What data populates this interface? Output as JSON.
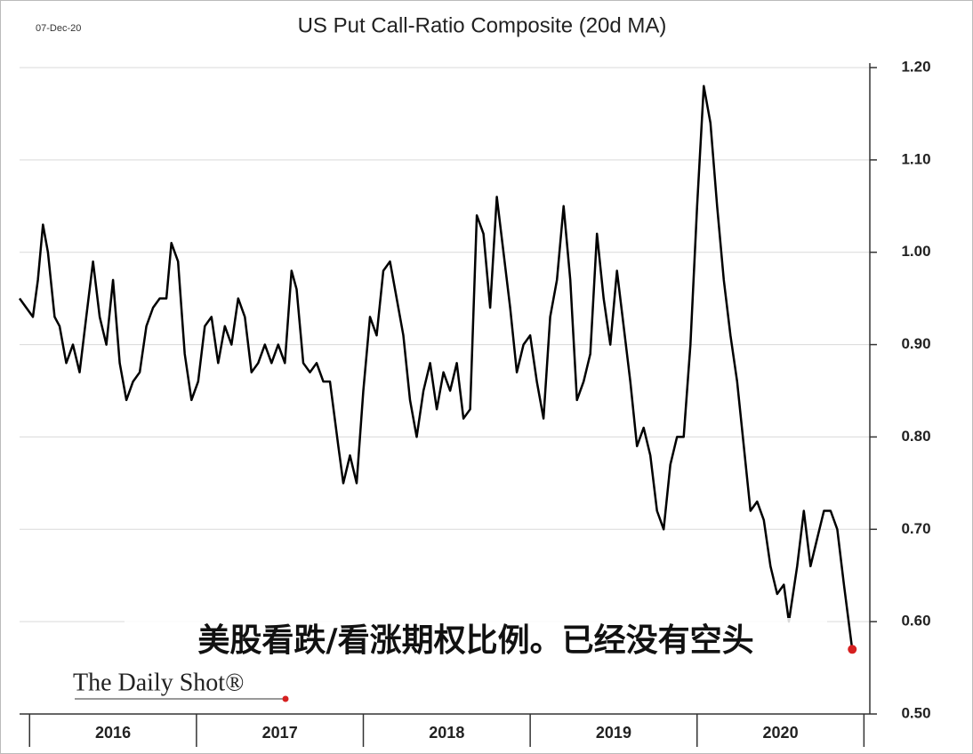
{
  "chart_data": {
    "type": "line",
    "title": "US Put Call-Ratio Composite (20d MA)",
    "date_note": "07-Dec-20",
    "annotation": "美股看跌/看涨期权比例。已经没有空头",
    "source": "The Daily Shot®",
    "series": [
      {
        "name": "US Put Call-Ratio Composite (20d MA)",
        "color": "#000000",
        "x": [
          2015.94,
          2015.98,
          2016.02,
          2016.05,
          2016.08,
          2016.11,
          2016.15,
          2016.18,
          2016.22,
          2016.26,
          2016.3,
          2016.34,
          2016.38,
          2016.42,
          2016.46,
          2016.5,
          2016.54,
          2016.58,
          2016.62,
          2016.66,
          2016.7,
          2016.74,
          2016.78,
          2016.82,
          2016.85,
          2016.89,
          2016.93,
          2016.97,
          2017.01,
          2017.05,
          2017.09,
          2017.13,
          2017.17,
          2017.21,
          2017.25,
          2017.29,
          2017.33,
          2017.37,
          2017.41,
          2017.45,
          2017.49,
          2017.53,
          2017.57,
          2017.6,
          2017.64,
          2017.68,
          2017.72,
          2017.76,
          2017.8,
          2017.85,
          2017.88,
          2017.92,
          2017.96,
          2018.0,
          2018.04,
          2018.08,
          2018.12,
          2018.16,
          2018.2,
          2018.24,
          2018.28,
          2018.32,
          2018.36,
          2018.4,
          2018.44,
          2018.48,
          2018.52,
          2018.56,
          2018.6,
          2018.64,
          2018.68,
          2018.72,
          2018.76,
          2018.8,
          2018.84,
          2018.88,
          2018.92,
          2018.96,
          2019.0,
          2019.04,
          2019.08,
          2019.12,
          2019.16,
          2019.2,
          2019.24,
          2019.28,
          2019.32,
          2019.36,
          2019.4,
          2019.44,
          2019.48,
          2019.52,
          2019.56,
          2019.6,
          2019.64,
          2019.68,
          2019.72,
          2019.76,
          2019.8,
          2019.84,
          2019.88,
          2019.92,
          2019.96,
          2020.0,
          2020.04,
          2020.08,
          2020.12,
          2020.16,
          2020.2,
          2020.24,
          2020.28,
          2020.32,
          2020.36,
          2020.4,
          2020.44,
          2020.48,
          2020.52,
          2020.55,
          2020.6,
          2020.64,
          2020.68,
          2020.72,
          2020.76,
          2020.8,
          2020.84,
          2020.88,
          2020.93
        ],
        "values": [
          0.95,
          0.94,
          0.93,
          0.97,
          1.03,
          1.0,
          0.93,
          0.92,
          0.88,
          0.9,
          0.87,
          0.93,
          0.99,
          0.93,
          0.9,
          0.97,
          0.88,
          0.84,
          0.86,
          0.87,
          0.92,
          0.94,
          0.95,
          0.95,
          1.01,
          0.99,
          0.89,
          0.84,
          0.86,
          0.92,
          0.93,
          0.88,
          0.92,
          0.9,
          0.95,
          0.93,
          0.87,
          0.88,
          0.9,
          0.88,
          0.9,
          0.88,
          0.98,
          0.96,
          0.88,
          0.87,
          0.88,
          0.86,
          0.86,
          0.79,
          0.75,
          0.78,
          0.75,
          0.85,
          0.93,
          0.91,
          0.98,
          0.99,
          0.95,
          0.91,
          0.84,
          0.8,
          0.85,
          0.88,
          0.83,
          0.87,
          0.85,
          0.88,
          0.82,
          0.83,
          1.04,
          1.02,
          0.94,
          1.06,
          1.0,
          0.94,
          0.87,
          0.9,
          0.91,
          0.86,
          0.82,
          0.93,
          0.97,
          1.05,
          0.97,
          0.84,
          0.86,
          0.89,
          1.02,
          0.95,
          0.9,
          0.98,
          0.92,
          0.86,
          0.79,
          0.81,
          0.78,
          0.72,
          0.7,
          0.77,
          0.8,
          0.8,
          0.9,
          1.05,
          1.18,
          1.14,
          1.05,
          0.97,
          0.91,
          0.86,
          0.79,
          0.72,
          0.73,
          0.71,
          0.66,
          0.63,
          0.64,
          0.6,
          0.66,
          0.72,
          0.66,
          0.69,
          0.72,
          0.72,
          0.7,
          0.64,
          0.57
        ]
      }
    ],
    "end_marker_color": "#d62020",
    "xlim": [
      2015.94,
      2020.95
    ],
    "xticks": [
      {
        "value": 2016.5,
        "label": "2016"
      },
      {
        "value": 2017.5,
        "label": "2017"
      },
      {
        "value": 2018.5,
        "label": "2018"
      },
      {
        "value": 2019.5,
        "label": "2019"
      },
      {
        "value": 2020.5,
        "label": "2020"
      }
    ],
    "ylim": [
      0.5,
      1.2
    ],
    "yticks": [
      {
        "value": 0.5,
        "label": "0.50"
      },
      {
        "value": 0.6,
        "label": "0.60"
      },
      {
        "value": 0.7,
        "label": "0.70"
      },
      {
        "value": 0.8,
        "label": "0.80"
      },
      {
        "value": 0.9,
        "label": "0.90"
      },
      {
        "value": 1.0,
        "label": "1.00"
      },
      {
        "value": 1.1,
        "label": "1.10"
      },
      {
        "value": 1.2,
        "label": "1.20"
      }
    ],
    "grid": true
  }
}
